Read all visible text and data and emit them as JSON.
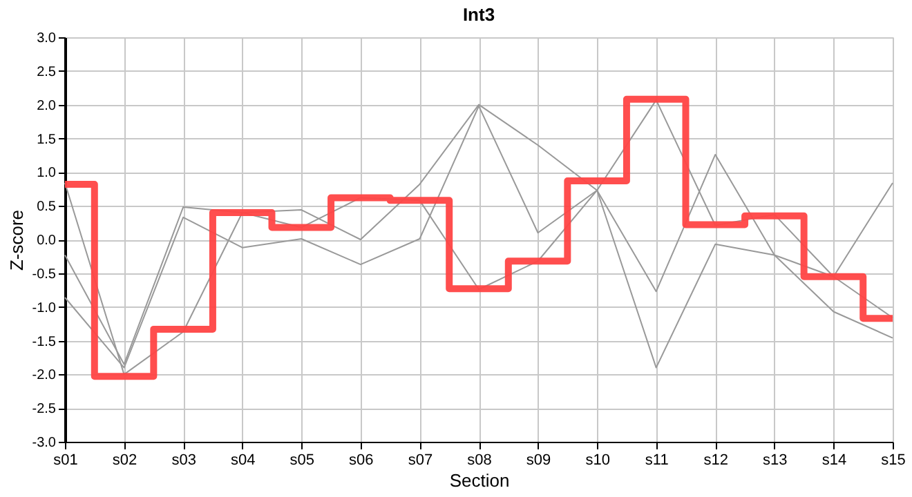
{
  "chart_data": {
    "type": "line",
    "title": "Int3",
    "xlabel": "Section",
    "ylabel": "Z-score",
    "categories": [
      "s01",
      "s02",
      "s03",
      "s04",
      "s05",
      "s06",
      "s07",
      "s08",
      "s09",
      "s10",
      "s11",
      "s12",
      "s13",
      "s14",
      "s15"
    ],
    "series": [
      {
        "type": "line",
        "color": "#999999",
        "values": [
          0.84,
          -2.0,
          -1.37,
          0.4,
          0.18,
          0.62,
          0.58,
          -0.74,
          -0.32,
          0.73,
          2.07,
          0.21,
          0.37,
          -0.55,
          -1.16
        ]
      },
      {
        "type": "line",
        "color": "#999999",
        "values": [
          -0.23,
          -1.85,
          0.48,
          0.4,
          0.44,
          0.0,
          0.82,
          2.0,
          1.4,
          0.73,
          -0.77,
          1.26,
          -0.23,
          -0.55,
          0.84
        ]
      },
      {
        "type": "line",
        "color": "#999999",
        "values": [
          -0.86,
          -1.9,
          0.33,
          -0.12,
          0.01,
          -0.37,
          0.01,
          1.98,
          0.1,
          0.73,
          -1.9,
          -0.07,
          -0.23,
          -1.07,
          -1.46
        ]
      },
      {
        "type": "step",
        "color": "#ff4444",
        "values": [
          0.82,
          -2.03,
          -1.33,
          0.4,
          0.18,
          0.62,
          0.58,
          -0.73,
          -0.32,
          0.87,
          2.08,
          0.22,
          0.35,
          -0.55,
          -1.17
        ]
      }
    ],
    "ylim": [
      -3.0,
      3.0
    ],
    "yticks": [
      {
        "value": -3,
        "label": "-3.0"
      },
      {
        "value": -2.5,
        "label": "-2.5"
      },
      {
        "value": -2,
        "label": "-2.0"
      },
      {
        "value": -1.5,
        "label": "-1.5"
      },
      {
        "value": -1,
        "label": "-1.0"
      },
      {
        "value": -0.5,
        "label": "-0.5"
      },
      {
        "value": 0,
        "label": "0.0"
      },
      {
        "value": 0.5,
        "label": "0.5"
      },
      {
        "value": 1,
        "label": "1.0"
      },
      {
        "value": 1.5,
        "label": "1.5"
      },
      {
        "value": 2,
        "label": "2.0"
      },
      {
        "value": 2.5,
        "label": "2.5"
      },
      {
        "value": 3,
        "label": "3.0"
      }
    ],
    "grid": true,
    "legend": false
  }
}
